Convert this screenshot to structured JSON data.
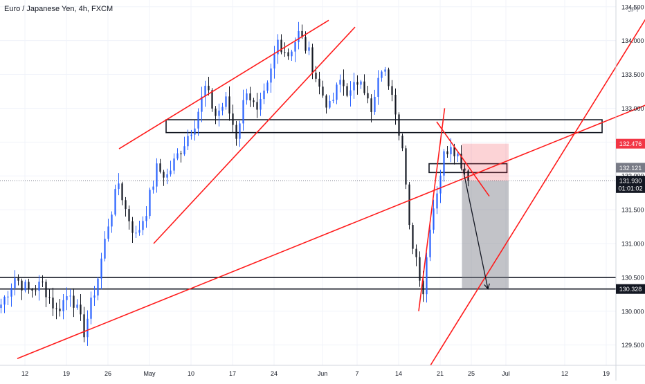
{
  "header": {
    "symbol_title": "Euro / Japanese Yen, 4h, FXCM"
  },
  "currency_label": "JPY",
  "chart_data": {
    "type": "candlestick",
    "title": "Euro / Japanese Yen, 4h, FXCM",
    "x_tick_labels": [
      "12",
      "19",
      "26",
      "May",
      "10",
      "17",
      "24",
      "Jun",
      "7",
      "14",
      "21",
      "25",
      "Jul",
      "12",
      "19"
    ],
    "y_tick_labels": [
      "129.500",
      "130.000",
      "130.500",
      "131.000",
      "131.500",
      "132.000",
      "132.500",
      "133.000",
      "133.500",
      "134.000",
      "134.500"
    ],
    "ylim": [
      129.2,
      134.6
    ],
    "price_badges": [
      {
        "label": "132.476",
        "value": 132.476,
        "color": "#f23645"
      },
      {
        "label": "132.121",
        "value": 132.121,
        "color": "#787b86"
      },
      {
        "label": "131.930",
        "value": 131.93,
        "color": "#131722"
      },
      {
        "label": "01:01:02",
        "value": 131.82,
        "color": "#131722"
      },
      {
        "label": "130.328",
        "value": 130.328,
        "color": "#131722"
      }
    ],
    "current_price": 131.93,
    "candle_color": "#2962ff",
    "line_color": "#ff1b1b",
    "candles_anchor_closes": [
      [
        0,
        130.1
      ],
      [
        4,
        130.5
      ],
      [
        8,
        130.3
      ],
      [
        12,
        130.4
      ],
      [
        16,
        130.0
      ],
      [
        20,
        130.3
      ],
      [
        24,
        129.7
      ],
      [
        28,
        130.5
      ],
      [
        31,
        131.3
      ],
      [
        34,
        131.9
      ],
      [
        36,
        131.5
      ],
      [
        39,
        131.1
      ],
      [
        42,
        131.5
      ],
      [
        45,
        132.1
      ],
      [
        48,
        132.0
      ],
      [
        52,
        132.4
      ],
      [
        56,
        132.8
      ],
      [
        59,
        133.3
      ],
      [
        62,
        132.9
      ],
      [
        65,
        133.1
      ],
      [
        68,
        132.6
      ],
      [
        71,
        133.3
      ],
      [
        74,
        132.9
      ],
      [
        77,
        133.3
      ],
      [
        80,
        134.0
      ],
      [
        83,
        133.8
      ],
      [
        86,
        134.1
      ],
      [
        89,
        133.8
      ],
      [
        92,
        133.3
      ],
      [
        95,
        133.0
      ],
      [
        98,
        133.4
      ],
      [
        101,
        133.2
      ],
      [
        104,
        133.5
      ],
      [
        107,
        132.9
      ],
      [
        110,
        133.6
      ],
      [
        113,
        133.3
      ],
      [
        115,
        132.7
      ],
      [
        116,
        132.4
      ],
      [
        118,
        131.2
      ],
      [
        120,
        130.8
      ],
      [
        122,
        130.3
      ],
      [
        124,
        131.3
      ],
      [
        126,
        131.8
      ],
      [
        128,
        132.3
      ],
      [
        130,
        132.5
      ],
      [
        132,
        132.3
      ],
      [
        134,
        132.1
      ],
      [
        135,
        131.93
      ]
    ],
    "trend_lines": [
      {
        "name": "outer-channel-top",
        "points": [
          [
            124.4,
            129.2
          ],
          [
            190.0,
            134.6
          ]
        ]
      },
      {
        "name": "wedge-top",
        "points": [
          [
            34.4,
            132.4
          ],
          [
            95.0,
            134.3
          ]
        ]
      },
      {
        "name": "wedge-bottom",
        "points": [
          [
            44.4,
            131.0
          ],
          [
            102.6,
            134.2
          ]
        ]
      },
      {
        "name": "mid-trendline",
        "points": [
          [
            5.0,
            129.3
          ],
          [
            194.0,
            133.2
          ]
        ]
      },
      {
        "name": "rally-line",
        "points": [
          [
            121.0,
            130.0
          ],
          [
            128.5,
            133.0
          ]
        ]
      },
      {
        "name": "descending-line",
        "points": [
          [
            126.2,
            132.8
          ],
          [
            141.4,
            131.7
          ]
        ]
      }
    ],
    "zones": [
      {
        "name": "resistance-zone",
        "x": [
          48.0,
          174.0
        ],
        "y": [
          132.64,
          132.83
        ]
      },
      {
        "name": "consolidation-box",
        "x": [
          124.0,
          146.5
        ],
        "y": [
          132.05,
          132.18
        ]
      },
      {
        "name": "support-line-upper",
        "value": 130.5
      },
      {
        "name": "support-line-lower",
        "value": 130.328
      }
    ],
    "position": {
      "entry": 131.93,
      "stop": 132.476,
      "target": 130.328,
      "x": [
        133.5,
        147.0
      ]
    },
    "projection": [
      [
        133.8,
        132.1
      ],
      [
        134.5,
        131.93
      ],
      [
        141.0,
        130.33
      ]
    ]
  }
}
